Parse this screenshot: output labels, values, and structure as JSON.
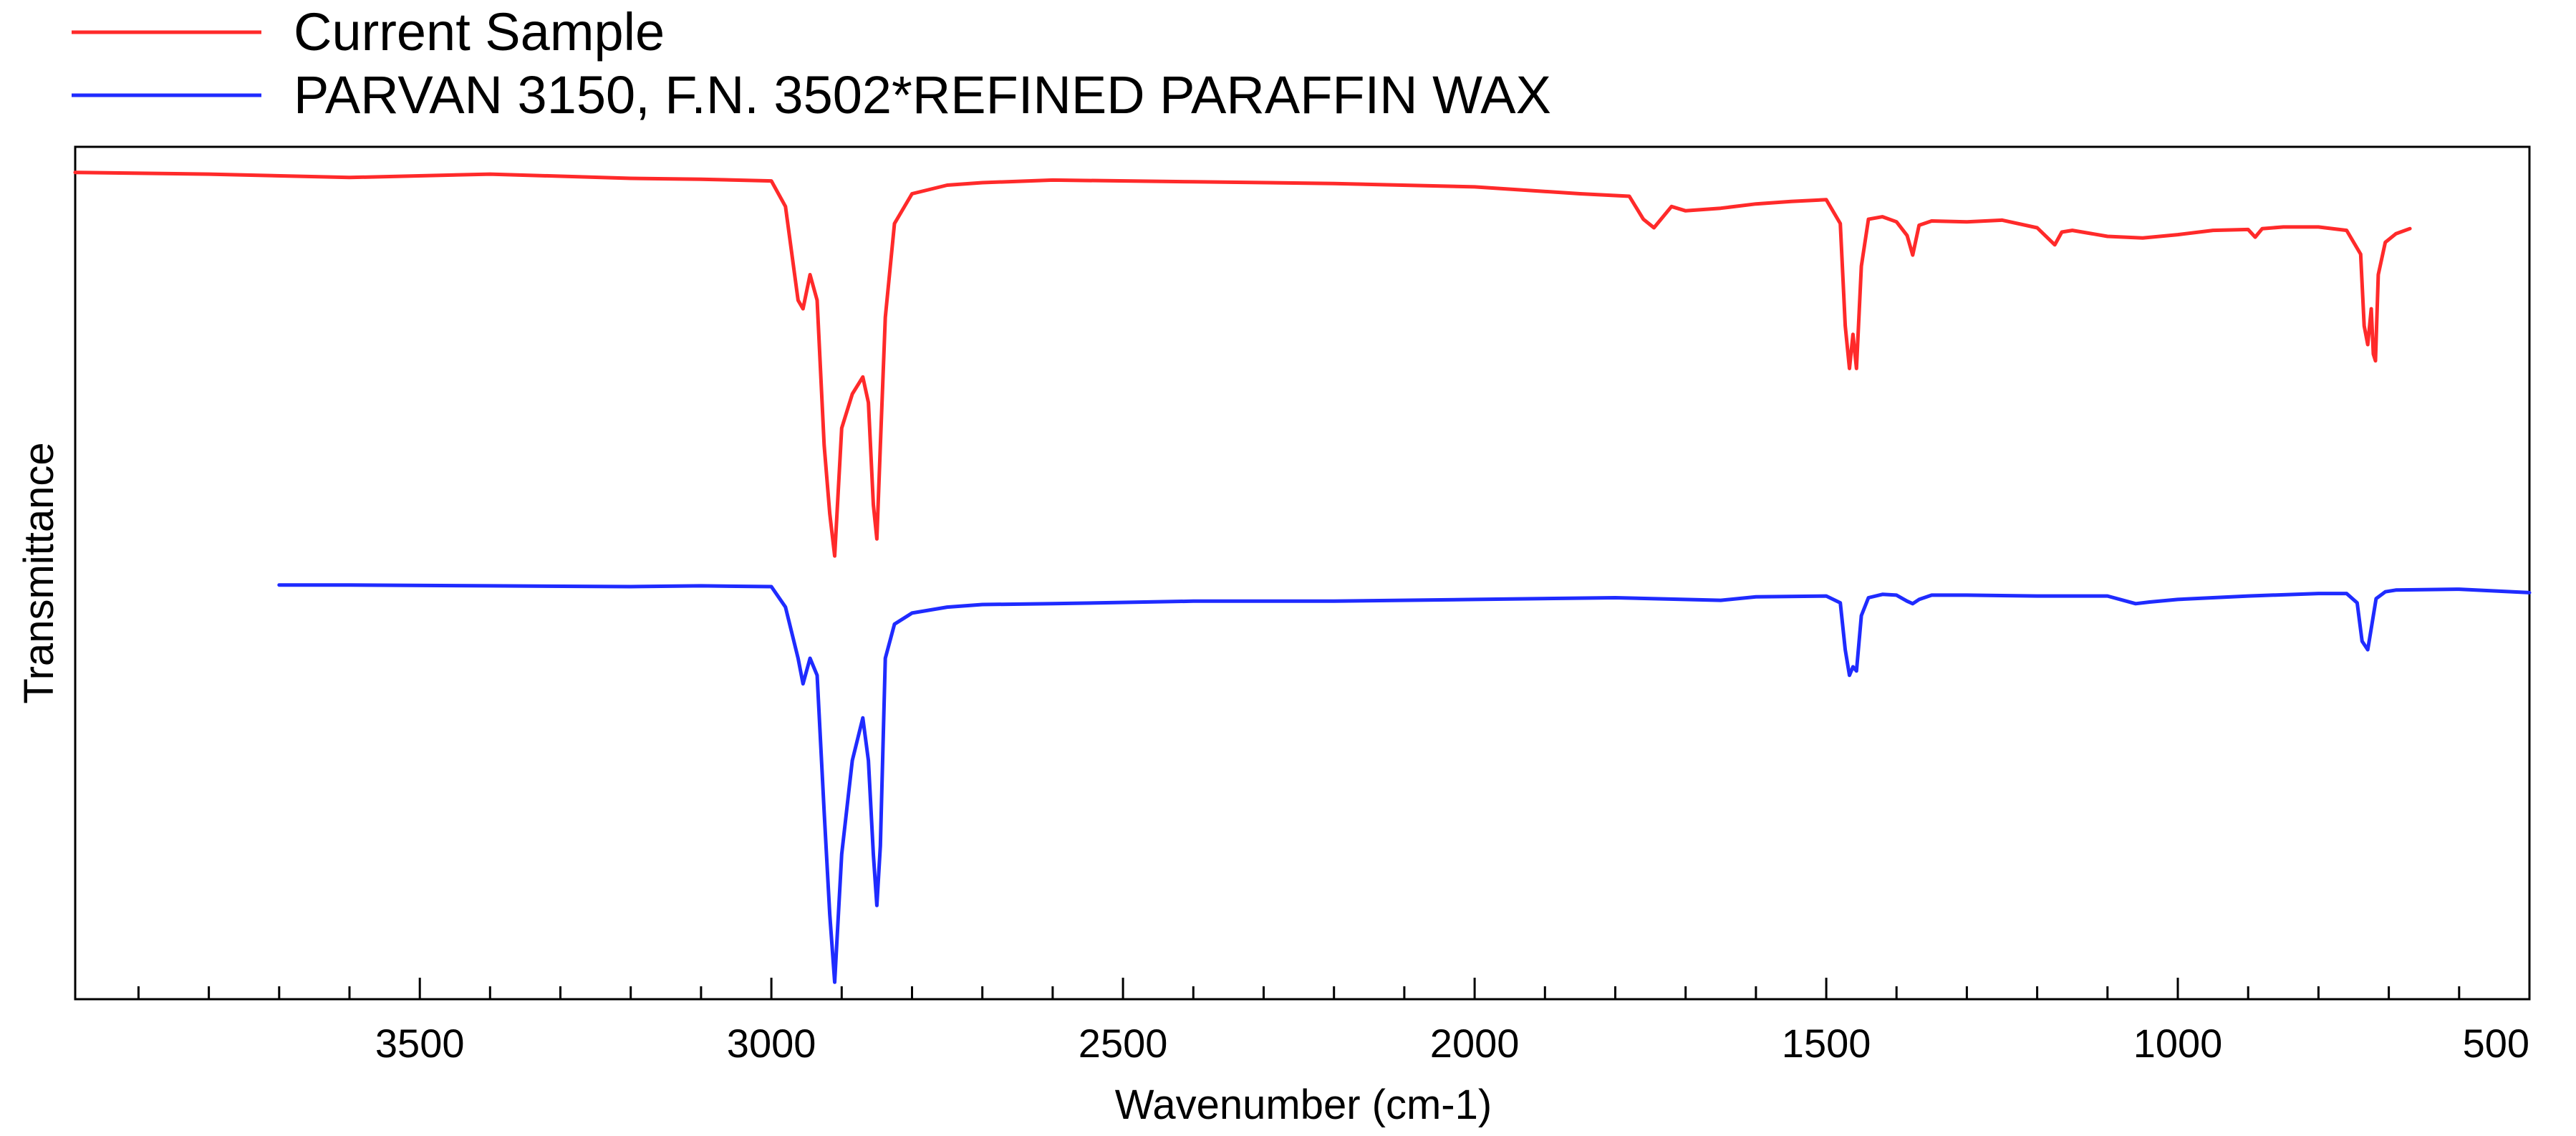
{
  "chart_data": {
    "type": "line",
    "title": "",
    "xlabel": "Wavenumber (cm-1)",
    "ylabel": "Transmittance",
    "xlim": [
      3990,
      500
    ],
    "x_reversed": true,
    "ylim": [
      0,
      100
    ],
    "grid": false,
    "legend_position": "top-left",
    "x_major_ticks": [
      3500,
      3000,
      2500,
      2000,
      1500,
      1000,
      500
    ],
    "x_tick_labels": [
      "3500",
      "3000",
      "2500",
      "2000",
      "1500",
      "1000",
      "500"
    ],
    "x_minor_tick_step": 100,
    "series": [
      {
        "name": "Current Sample",
        "color": "#ff2a2a",
        "x": [
          3990,
          3800,
          3600,
          3400,
          3200,
          3100,
          3000,
          2980,
          2962,
          2955,
          2945,
          2935,
          2925,
          2917,
          2910,
          2900,
          2885,
          2870,
          2862,
          2855,
          2850,
          2845,
          2838,
          2825,
          2800,
          2750,
          2700,
          2600,
          2400,
          2200,
          2000,
          1850,
          1780,
          1760,
          1745,
          1735,
          1720,
          1700,
          1650,
          1600,
          1550,
          1500,
          1480,
          1473,
          1467,
          1462,
          1457,
          1450,
          1440,
          1420,
          1400,
          1385,
          1377,
          1368,
          1350,
          1300,
          1250,
          1200,
          1175,
          1165,
          1150,
          1100,
          1050,
          1000,
          950,
          900,
          890,
          880,
          850,
          800,
          760,
          740,
          735,
          730,
          725,
          722,
          719,
          715,
          705,
          690,
          670
        ],
        "y": [
          97,
          96.8,
          96.4,
          96.8,
          96.3,
          96.2,
          96,
          93,
          82,
          81,
          85,
          82,
          65,
          57,
          52,
          67,
          71,
          73,
          70,
          58,
          54,
          65,
          80,
          91,
          94.5,
          95.5,
          95.8,
          96.1,
          95.9,
          95.7,
          95.3,
          94.5,
          94.2,
          91.5,
          90.5,
          91.5,
          93,
          92.5,
          92.8,
          93.3,
          93.6,
          93.8,
          91,
          79,
          74,
          78,
          74,
          86,
          91.5,
          91.8,
          91.2,
          89.6,
          87.3,
          90.8,
          91.3,
          91.2,
          91.4,
          90.5,
          88.5,
          90,
          90.2,
          89.5,
          89.3,
          89.7,
          90.2,
          90.3,
          89.4,
          90.4,
          90.6,
          90.6,
          90.2,
          87.4,
          79,
          76.8,
          81,
          75.7,
          74.9,
          85,
          88.8,
          89.8,
          90.4
        ]
      },
      {
        "name": "PARVAN 3150, F.N. 3502*REFINED PARAFFIN WAX",
        "color": "#1f2bff",
        "x": [
          3700,
          3600,
          3400,
          3200,
          3100,
          3000,
          2980,
          2962,
          2955,
          2945,
          2935,
          2925,
          2917,
          2910,
          2900,
          2885,
          2870,
          2862,
          2855,
          2850,
          2845,
          2838,
          2825,
          2800,
          2750,
          2700,
          2600,
          2400,
          2200,
          2000,
          1800,
          1650,
          1600,
          1500,
          1480,
          1473,
          1467,
          1462,
          1457,
          1450,
          1440,
          1420,
          1400,
          1385,
          1377,
          1368,
          1350,
          1300,
          1200,
          1100,
          1060,
          1040,
          1000,
          900,
          800,
          760,
          745,
          738,
          730,
          725,
          718,
          705,
          690,
          600,
          500
        ],
        "y": [
          48.6,
          48.6,
          48.5,
          48.4,
          48.5,
          48.4,
          46,
          40,
          37,
          40,
          38,
          22,
          10,
          2,
          17,
          28,
          33,
          28,
          17,
          11,
          18,
          40,
          44,
          45.3,
          46,
          46.3,
          46.4,
          46.7,
          46.7,
          46.9,
          47.1,
          46.8,
          47.2,
          47.3,
          46.5,
          41,
          38,
          39,
          38.5,
          45,
          47.1,
          47.5,
          47.4,
          46.7,
          46.4,
          46.9,
          47.4,
          47.4,
          47.3,
          47.3,
          46.4,
          46.6,
          46.9,
          47.3,
          47.6,
          47.6,
          46.5,
          42,
          41,
          43.5,
          47,
          47.8,
          48,
          48.1,
          47.7
        ]
      }
    ]
  }
}
